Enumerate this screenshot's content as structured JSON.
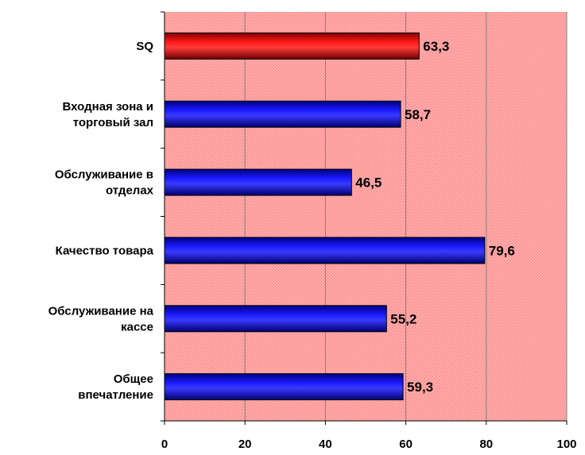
{
  "chart_data": {
    "type": "bar",
    "orientation": "horizontal",
    "categories": [
      "SQ",
      "Входная зона и торговый зал",
      "Обслуживание в отделах",
      "Качество товара",
      "Обслуживание на кассе",
      "Общее впечатление"
    ],
    "category_lines": [
      [
        "SQ"
      ],
      [
        "Входная зона и",
        "торговый зал"
      ],
      [
        "Обслуживание в",
        "отделах"
      ],
      [
        "Качество товара"
      ],
      [
        "Обслуживание на",
        "кассе"
      ],
      [
        "Общее",
        "впечатление"
      ]
    ],
    "values": [
      63.3,
      58.7,
      46.5,
      79.6,
      55.2,
      59.3
    ],
    "value_labels": [
      "63,3",
      "58,7",
      "46,5",
      "79,6",
      "55,2",
      "59,3"
    ],
    "bar_colors": [
      "#ff0000",
      "#0000ff",
      "#0000ff",
      "#0000ff",
      "#0000ff",
      "#0000ff"
    ],
    "xlim": [
      0,
      100
    ],
    "xticks": [
      0,
      20,
      40,
      60,
      80,
      100
    ],
    "xtick_labels": [
      "0",
      "20",
      "40",
      "60",
      "80",
      "100"
    ],
    "grid": true,
    "plot_background": "#ff9f9f",
    "title": "",
    "xlabel": "",
    "ylabel": ""
  }
}
